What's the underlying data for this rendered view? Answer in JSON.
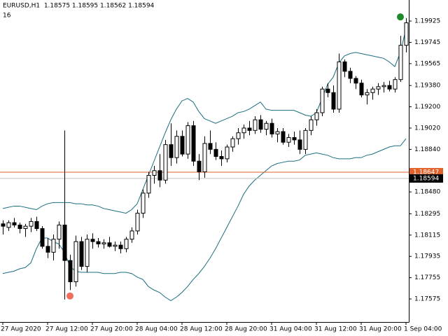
{
  "chart_data": {
    "type": "candlestick",
    "title": "EURUSD,H1  1.18575 1.18595 1.18562 1.18594",
    "subtitle": "16",
    "categories": [
      "27 Aug 2020",
      null,
      null,
      null,
      null,
      null,
      null,
      null,
      "27 Aug 12:00",
      null,
      null,
      null,
      null,
      null,
      null,
      null,
      "27 Aug 20:00",
      null,
      null,
      null,
      null,
      null,
      null,
      null,
      "28 Aug 04:00",
      null,
      null,
      null,
      null,
      null,
      null,
      null,
      "28 Aug 12:00",
      null,
      null,
      null,
      null,
      null,
      null,
      null,
      "28 Aug 20:00",
      null,
      null,
      null,
      null,
      null,
      null,
      null,
      "31 Aug 04:00",
      null,
      null,
      null,
      null,
      null,
      null,
      null,
      "31 Aug 12:00",
      null,
      null,
      null,
      null,
      null,
      null,
      null,
      "31 Aug 20:00",
      null,
      null,
      null,
      null,
      null,
      null,
      null,
      "1 Sep 04:00"
    ],
    "candles": {
      "color": "#000000",
      "open": [
        1.1821,
        1.1818,
        1.1822,
        1.182,
        1.1817,
        1.1819,
        1.1823,
        1.1817,
        1.1802,
        1.1797,
        1.1808,
        1.182,
        1.179,
        1.1772,
        1.1806,
        1.1785,
        1.1808,
        1.1806,
        1.1804,
        1.1805,
        1.1802,
        1.1803,
        1.18,
        1.1808,
        1.1815,
        1.183,
        1.1847,
        1.1862,
        1.1866,
        1.1858,
        1.1888,
        1.1877,
        1.1895,
        1.188,
        1.1904,
        1.1874,
        1.1865,
        1.1889,
        1.1884,
        1.1878,
        1.1876,
        1.1886,
        1.1893,
        1.1898,
        1.1902,
        1.19,
        1.1909,
        1.1901,
        1.1906,
        1.1897,
        1.1899,
        1.189,
        1.1894,
        1.1892,
        1.1884,
        1.19,
        1.1909,
        1.1915,
        1.1935,
        1.1932,
        1.1918,
        1.1958,
        1.195,
        1.1944,
        1.194,
        1.193,
        1.1932,
        1.1935,
        1.1937,
        1.1938,
        1.1935,
        1.1943,
        1.1972
      ],
      "high": [
        1.1824,
        1.1824,
        1.1826,
        1.1822,
        1.1821,
        1.1826,
        1.1827,
        1.1819,
        1.1809,
        1.1812,
        1.1823,
        1.19,
        1.1795,
        1.1811,
        1.181,
        1.1812,
        1.1813,
        1.1809,
        1.1808,
        1.181,
        1.1806,
        1.1806,
        1.181,
        1.1818,
        1.1833,
        1.185,
        1.1865,
        1.187,
        1.188,
        1.1892,
        1.1906,
        1.19,
        1.19,
        1.1907,
        1.1908,
        1.188,
        1.1895,
        1.19,
        1.189,
        1.1883,
        1.1888,
        1.1895,
        1.1902,
        1.1905,
        1.1908,
        1.1912,
        1.1913,
        1.1908,
        1.191,
        1.1902,
        1.1902,
        1.1897,
        1.1899,
        1.19,
        1.1902,
        1.1912,
        1.1918,
        1.1937,
        1.194,
        1.1938,
        1.1965,
        1.196,
        1.1953,
        1.1946,
        1.1943,
        1.1935,
        1.1937,
        1.194,
        1.1941,
        1.1942,
        1.1945,
        1.198,
        1.1995
      ],
      "low": [
        1.1812,
        1.1815,
        1.1818,
        1.1813,
        1.181,
        1.1814,
        1.1815,
        1.18,
        1.1792,
        1.179,
        1.18,
        1.1757,
        1.1765,
        1.1768,
        1.1782,
        1.178,
        1.18,
        1.1801,
        1.18,
        1.1801,
        1.1798,
        1.1796,
        1.1797,
        1.1805,
        1.1812,
        1.1826,
        1.1843,
        1.1855,
        1.1852,
        1.1855,
        1.187,
        1.1872,
        1.1878,
        1.1876,
        1.187,
        1.1858,
        1.186,
        1.188,
        1.1875,
        1.187,
        1.1873,
        1.1882,
        1.1888,
        1.1893,
        1.1896,
        1.1897,
        1.1898,
        1.1896,
        1.1894,
        1.189,
        1.1888,
        1.1886,
        1.1888,
        1.188,
        1.188,
        1.1896,
        1.1904,
        1.1912,
        1.1928,
        1.1915,
        1.1915,
        1.1945,
        1.194,
        1.1935,
        1.1928,
        1.1922,
        1.1926,
        1.193,
        1.1932,
        1.1933,
        1.1932,
        1.1941,
        1.1966
      ],
      "close": [
        1.1819,
        1.1822,
        1.182,
        1.1817,
        1.1819,
        1.1823,
        1.1817,
        1.1802,
        1.1797,
        1.1808,
        1.182,
        1.179,
        1.1772,
        1.1806,
        1.1785,
        1.1808,
        1.1806,
        1.1804,
        1.1805,
        1.1802,
        1.1803,
        1.18,
        1.1808,
        1.1815,
        1.183,
        1.1847,
        1.1862,
        1.1866,
        1.1858,
        1.1888,
        1.1877,
        1.1895,
        1.188,
        1.1904,
        1.1874,
        1.1865,
        1.1889,
        1.1884,
        1.1878,
        1.1876,
        1.1886,
        1.1893,
        1.1898,
        1.1902,
        1.19,
        1.1909,
        1.1901,
        1.1906,
        1.1897,
        1.1899,
        1.189,
        1.1894,
        1.1892,
        1.1884,
        1.19,
        1.1909,
        1.1915,
        1.1935,
        1.1932,
        1.1918,
        1.1958,
        1.195,
        1.1944,
        1.194,
        1.193,
        1.1932,
        1.1935,
        1.1937,
        1.1938,
        1.1935,
        1.1943,
        1.1972,
        1.1991
      ]
    },
    "overlays": [
      {
        "color": "#1b6f80",
        "values": [
          1.1834,
          1.1835,
          1.1836,
          1.1836,
          1.1835,
          1.1834,
          1.1833,
          1.1836,
          1.1838,
          1.1839,
          1.1839,
          1.1839,
          1.1839,
          1.1838,
          1.1838,
          1.1837,
          1.1837,
          1.1836,
          1.1834,
          1.1833,
          1.1832,
          1.1831,
          1.183,
          1.1833,
          1.1838,
          1.185,
          1.1862,
          1.1874,
          1.1886,
          1.1898,
          1.1909,
          1.1918,
          1.1925,
          1.1927,
          1.1924,
          1.1916,
          1.191,
          1.1908,
          1.1906,
          1.1908,
          1.191,
          1.1912,
          1.1915,
          1.1916,
          1.1918,
          1.1921,
          1.1924,
          1.1918,
          1.1917,
          1.1917,
          1.1917,
          1.1917,
          1.1917,
          1.1915,
          1.1913,
          1.1912,
          1.1915,
          1.1927,
          1.1939,
          1.1945,
          1.1957,
          1.1963,
          1.1965,
          1.1966,
          1.1965,
          1.1964,
          1.1963,
          1.1962,
          1.1961,
          1.1958,
          1.1954,
          1.1966,
          1.1986
        ]
      },
      {
        "color": "#1b6f80",
        "values": [
          1.1779,
          1.178,
          1.1781,
          1.1783,
          1.1784,
          1.1788,
          1.18,
          1.1809,
          1.1809,
          1.1806,
          1.1804,
          1.1797,
          1.1785,
          1.1781,
          1.178,
          1.178,
          1.178,
          1.178,
          1.1779,
          1.1779,
          1.1779,
          1.178,
          1.178,
          1.1779,
          1.1776,
          1.1774,
          1.1768,
          1.1765,
          1.1763,
          1.1759,
          1.1756,
          1.1759,
          1.1763,
          1.1768,
          1.1774,
          1.1779,
          1.1785,
          1.1792,
          1.18,
          1.1809,
          1.1818,
          1.1827,
          1.1836,
          1.1846,
          1.1853,
          1.1858,
          1.1862,
          1.1866,
          1.187,
          1.1872,
          1.1873,
          1.1874,
          1.1874,
          1.1875,
          1.1879,
          1.188,
          1.1881,
          1.188,
          1.1879,
          1.1877,
          1.1876,
          1.1876,
          1.1876,
          1.1877,
          1.1877,
          1.1879,
          1.188,
          1.1882,
          1.1884,
          1.1886,
          1.1887,
          1.1887,
          1.1893
        ]
      }
    ],
    "signals": [
      {
        "index": 71,
        "price": 1.1996,
        "color": "#1f8a2a"
      },
      {
        "index": 12,
        "price": 1.176,
        "color": "#f26b5b"
      }
    ],
    "levels": [
      {
        "value": 1.18647,
        "label": "1.18647",
        "color": "#e2622a",
        "label_color": "#e2622a"
      },
      {
        "value": 1.18594,
        "label": "1.18594",
        "color": "#c0c0c0",
        "label_color": "#000000"
      }
    ],
    "ylim": [
      1.1738,
      1.20103
    ],
    "yticks": [
      1.19925,
      1.19745,
      1.19565,
      {
        "value": 1.1938,
        "label": "1.19380"
      },
      {
        "value": 1.192,
        "label": "1.19200"
      },
      {
        "value": 1.1902,
        "label": "1.19020"
      },
      {
        "value": 1.1884,
        "label": "1.18840"
      },
      {
        "value": 1.1848,
        "label": "1.18480"
      },
      1.18295,
      1.18115,
      1.17935,
      1.17755,
      1.17575
    ]
  }
}
